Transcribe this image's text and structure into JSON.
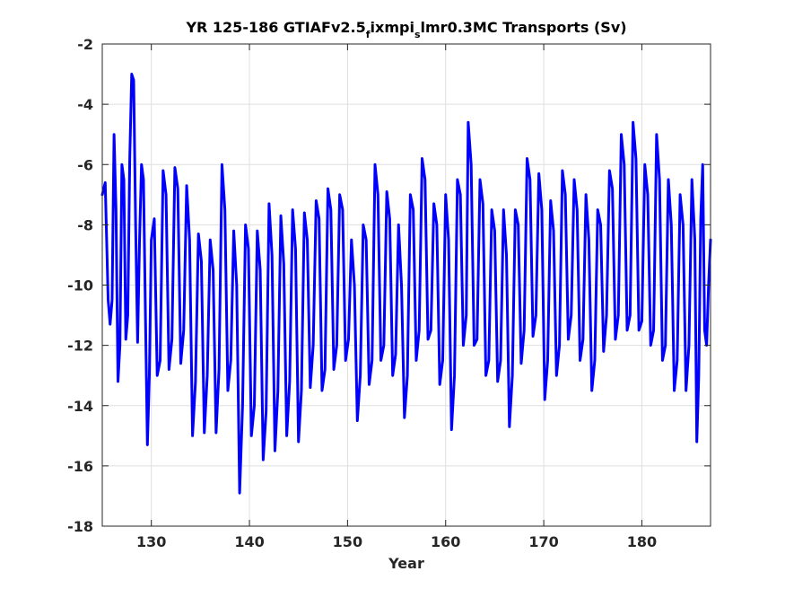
{
  "chart_data": {
    "type": "line",
    "title": {
      "before": "YR 125-186 GTIAFv2.5",
      "sub1": "f",
      "middle": "ixmpi",
      "sub2": "s",
      "after": "lmr0.3MC Transports (Sv)"
    },
    "xlabel": "Year",
    "ylabel": "",
    "xlim": [
      125,
      187
    ],
    "ylim": [
      -18,
      -2
    ],
    "xticks": [
      130,
      140,
      150,
      160,
      170,
      180
    ],
    "yticks": [
      -18,
      -16,
      -14,
      -12,
      -10,
      -8,
      -6,
      -4,
      -2
    ],
    "grid": true,
    "series_color": "#0000ff",
    "series": [
      {
        "name": "",
        "points": [
          [
            125.0,
            -7.0
          ],
          [
            125.3,
            -6.6
          ],
          [
            125.6,
            -10.5
          ],
          [
            125.8,
            -11.3
          ],
          [
            126.0,
            -10.5
          ],
          [
            126.2,
            -5.0
          ],
          [
            126.4,
            -7.5
          ],
          [
            126.6,
            -13.2
          ],
          [
            126.8,
            -12.0
          ],
          [
            127.0,
            -6.0
          ],
          [
            127.2,
            -6.5
          ],
          [
            127.4,
            -11.8
          ],
          [
            127.6,
            -11.0
          ],
          [
            127.8,
            -5.8
          ],
          [
            128.0,
            -3.0
          ],
          [
            128.2,
            -3.2
          ],
          [
            128.4,
            -8.0
          ],
          [
            128.6,
            -11.9
          ],
          [
            128.8,
            -8.5
          ],
          [
            129.0,
            -6.0
          ],
          [
            129.2,
            -6.5
          ],
          [
            129.4,
            -11.0
          ],
          [
            129.6,
            -15.3
          ],
          [
            129.8,
            -13.0
          ],
          [
            130.0,
            -8.5
          ],
          [
            130.3,
            -7.8
          ],
          [
            130.6,
            -13.0
          ],
          [
            130.9,
            -12.5
          ],
          [
            131.2,
            -6.2
          ],
          [
            131.5,
            -7.0
          ],
          [
            131.8,
            -12.8
          ],
          [
            132.1,
            -11.8
          ],
          [
            132.4,
            -6.1
          ],
          [
            132.7,
            -6.8
          ],
          [
            133.0,
            -12.6
          ],
          [
            133.3,
            -11.5
          ],
          [
            133.6,
            -6.7
          ],
          [
            133.9,
            -8.5
          ],
          [
            134.2,
            -15.0
          ],
          [
            134.5,
            -13.2
          ],
          [
            134.8,
            -8.3
          ],
          [
            135.1,
            -9.2
          ],
          [
            135.4,
            -14.9
          ],
          [
            135.7,
            -13.0
          ],
          [
            136.0,
            -8.5
          ],
          [
            136.3,
            -9.5
          ],
          [
            136.6,
            -14.9
          ],
          [
            136.9,
            -12.8
          ],
          [
            137.2,
            -6.0
          ],
          [
            137.5,
            -7.5
          ],
          [
            137.8,
            -13.5
          ],
          [
            138.1,
            -12.5
          ],
          [
            138.4,
            -8.2
          ],
          [
            138.7,
            -10.0
          ],
          [
            139.0,
            -16.9
          ],
          [
            139.3,
            -14.0
          ],
          [
            139.6,
            -8.0
          ],
          [
            139.9,
            -8.8
          ],
          [
            140.2,
            -15.0
          ],
          [
            140.5,
            -14.0
          ],
          [
            140.8,
            -8.2
          ],
          [
            141.1,
            -9.5
          ],
          [
            141.4,
            -15.8
          ],
          [
            141.7,
            -14.2
          ],
          [
            142.0,
            -7.3
          ],
          [
            142.3,
            -9.0
          ],
          [
            142.6,
            -15.5
          ],
          [
            142.9,
            -13.5
          ],
          [
            143.2,
            -7.7
          ],
          [
            143.5,
            -9.3
          ],
          [
            143.8,
            -15.0
          ],
          [
            144.1,
            -13.2
          ],
          [
            144.4,
            -7.5
          ],
          [
            144.7,
            -8.8
          ],
          [
            145.0,
            -15.2
          ],
          [
            145.3,
            -13.5
          ],
          [
            145.6,
            -7.6
          ],
          [
            145.9,
            -8.5
          ],
          [
            146.2,
            -13.4
          ],
          [
            146.5,
            -12.0
          ],
          [
            146.8,
            -7.2
          ],
          [
            147.1,
            -7.8
          ],
          [
            147.4,
            -13.5
          ],
          [
            147.7,
            -12.8
          ],
          [
            148.0,
            -6.8
          ],
          [
            148.3,
            -7.5
          ],
          [
            148.6,
            -12.8
          ],
          [
            148.9,
            -12.0
          ],
          [
            149.2,
            -7.0
          ],
          [
            149.5,
            -7.5
          ],
          [
            149.8,
            -12.5
          ],
          [
            150.1,
            -11.8
          ],
          [
            150.4,
            -8.5
          ],
          [
            150.7,
            -10.0
          ],
          [
            151.0,
            -14.5
          ],
          [
            151.3,
            -13.0
          ],
          [
            151.6,
            -8.0
          ],
          [
            151.9,
            -8.5
          ],
          [
            152.2,
            -13.3
          ],
          [
            152.5,
            -12.5
          ],
          [
            152.8,
            -6.0
          ],
          [
            153.1,
            -7.0
          ],
          [
            153.4,
            -12.5
          ],
          [
            153.7,
            -12.0
          ],
          [
            154.0,
            -6.9
          ],
          [
            154.3,
            -7.8
          ],
          [
            154.6,
            -13.0
          ],
          [
            154.9,
            -12.3
          ],
          [
            155.2,
            -8.0
          ],
          [
            155.5,
            -10.0
          ],
          [
            155.8,
            -14.4
          ],
          [
            156.1,
            -13.0
          ],
          [
            156.4,
            -7.0
          ],
          [
            156.7,
            -7.5
          ],
          [
            157.0,
            -12.5
          ],
          [
            157.3,
            -11.5
          ],
          [
            157.6,
            -5.8
          ],
          [
            157.9,
            -6.5
          ],
          [
            158.2,
            -11.8
          ],
          [
            158.5,
            -11.5
          ],
          [
            158.8,
            -7.3
          ],
          [
            159.1,
            -8.0
          ],
          [
            159.4,
            -13.3
          ],
          [
            159.7,
            -12.5
          ],
          [
            160.0,
            -7.0
          ],
          [
            160.3,
            -8.5
          ],
          [
            160.6,
            -14.8
          ],
          [
            160.9,
            -13.0
          ],
          [
            161.2,
            -6.5
          ],
          [
            161.5,
            -7.0
          ],
          [
            161.8,
            -12.0
          ],
          [
            162.1,
            -11.0
          ],
          [
            162.3,
            -4.6
          ],
          [
            162.6,
            -6.0
          ],
          [
            162.9,
            -12.0
          ],
          [
            163.2,
            -11.8
          ],
          [
            163.5,
            -6.5
          ],
          [
            163.8,
            -7.3
          ],
          [
            164.1,
            -13.0
          ],
          [
            164.4,
            -12.5
          ],
          [
            164.7,
            -7.5
          ],
          [
            165.0,
            -8.2
          ],
          [
            165.3,
            -13.2
          ],
          [
            165.6,
            -12.5
          ],
          [
            165.9,
            -7.5
          ],
          [
            166.2,
            -9.0
          ],
          [
            166.5,
            -14.7
          ],
          [
            166.8,
            -13.0
          ],
          [
            167.1,
            -7.5
          ],
          [
            167.4,
            -8.0
          ],
          [
            167.7,
            -12.6
          ],
          [
            168.0,
            -11.5
          ],
          [
            168.3,
            -5.8
          ],
          [
            168.6,
            -6.5
          ],
          [
            168.9,
            -11.7
          ],
          [
            169.2,
            -11.0
          ],
          [
            169.5,
            -6.3
          ],
          [
            169.8,
            -7.5
          ],
          [
            170.1,
            -13.8
          ],
          [
            170.4,
            -12.5
          ],
          [
            170.7,
            -7.2
          ],
          [
            171.0,
            -8.2
          ],
          [
            171.3,
            -13.0
          ],
          [
            171.6,
            -12.0
          ],
          [
            171.9,
            -6.2
          ],
          [
            172.2,
            -7.0
          ],
          [
            172.5,
            -11.8
          ],
          [
            172.8,
            -11.0
          ],
          [
            173.1,
            -6.5
          ],
          [
            173.4,
            -7.5
          ],
          [
            173.7,
            -12.5
          ],
          [
            174.0,
            -11.8
          ],
          [
            174.3,
            -7.0
          ],
          [
            174.6,
            -8.5
          ],
          [
            174.9,
            -13.5
          ],
          [
            175.2,
            -12.5
          ],
          [
            175.5,
            -7.5
          ],
          [
            175.8,
            -8.0
          ],
          [
            176.1,
            -12.2
          ],
          [
            176.4,
            -11.0
          ],
          [
            176.7,
            -6.2
          ],
          [
            177.0,
            -6.8
          ],
          [
            177.3,
            -11.8
          ],
          [
            177.6,
            -11.0
          ],
          [
            177.9,
            -5.0
          ],
          [
            178.2,
            -6.0
          ],
          [
            178.5,
            -11.5
          ],
          [
            178.8,
            -11.0
          ],
          [
            179.1,
            -4.6
          ],
          [
            179.4,
            -5.8
          ],
          [
            179.7,
            -11.5
          ],
          [
            180.0,
            -11.2
          ],
          [
            180.3,
            -6.0
          ],
          [
            180.6,
            -7.0
          ],
          [
            180.9,
            -12.0
          ],
          [
            181.2,
            -11.5
          ],
          [
            181.5,
            -5.0
          ],
          [
            181.8,
            -6.5
          ],
          [
            182.1,
            -12.5
          ],
          [
            182.4,
            -12.0
          ],
          [
            182.7,
            -6.5
          ],
          [
            183.0,
            -8.0
          ],
          [
            183.3,
            -13.5
          ],
          [
            183.6,
            -12.5
          ],
          [
            183.9,
            -7.0
          ],
          [
            184.2,
            -8.0
          ],
          [
            184.5,
            -13.5
          ],
          [
            184.8,
            -12.0
          ],
          [
            185.1,
            -6.5
          ],
          [
            185.4,
            -8.5
          ],
          [
            185.6,
            -15.2
          ],
          [
            185.8,
            -13.0
          ],
          [
            186.0,
            -7.8
          ],
          [
            186.2,
            -6.0
          ],
          [
            186.4,
            -11.5
          ],
          [
            186.6,
            -12.0
          ],
          [
            186.8,
            -10.0
          ],
          [
            187.0,
            -8.5
          ]
        ]
      }
    ]
  }
}
